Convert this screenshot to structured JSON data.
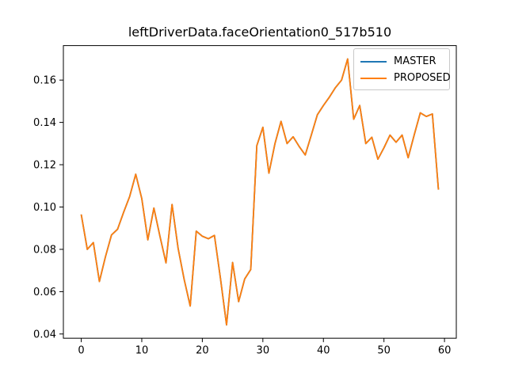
{
  "figure": {
    "background": "#ffffff"
  },
  "title": "leftDriverData.faceOrientation0_517b510",
  "legend": {
    "position": "upper right",
    "items": [
      {
        "label": "MASTER",
        "color": "#1f77b4"
      },
      {
        "label": "PROPOSED",
        "color": "#ff7f0e"
      }
    ]
  },
  "colors": {
    "spine": "#000000",
    "tick": "#000000",
    "tick_label": "#000000",
    "master": "#1f77b4",
    "proposed": "#ff7f0e"
  },
  "chart_data": {
    "type": "line",
    "title": "leftDriverData.faceOrientation0_517b510",
    "xlabel": "",
    "ylabel": "",
    "grid": false,
    "legend_position": "upper right",
    "xlim": [
      -2.95,
      61.95
    ],
    "ylim": [
      0.038,
      0.1763
    ],
    "xticks": [
      0,
      10,
      20,
      30,
      40,
      50,
      60
    ],
    "xtick_labels": [
      "0",
      "10",
      "20",
      "30",
      "40",
      "50",
      "60"
    ],
    "yticks": [
      0.04,
      0.06,
      0.08,
      0.1,
      0.12,
      0.14,
      0.16
    ],
    "ytick_labels": [
      "0.04",
      "0.06",
      "0.08",
      "0.10",
      "0.12",
      "0.14",
      "0.16"
    ],
    "x": [
      0,
      1,
      2,
      3,
      4,
      5,
      6,
      7,
      8,
      9,
      10,
      11,
      12,
      13,
      14,
      15,
      16,
      17,
      18,
      19,
      20,
      21,
      22,
      23,
      24,
      25,
      26,
      27,
      28,
      29,
      30,
      31,
      32,
      33,
      34,
      35,
      36,
      37,
      38,
      39,
      40,
      41,
      42,
      43,
      44,
      45,
      46,
      47,
      48,
      49,
      50,
      51,
      52,
      53,
      54,
      55,
      56,
      57,
      58,
      59
    ],
    "series": [
      {
        "name": "MASTER",
        "color": "#1f77b4",
        "values": [
          0.0965,
          0.08,
          0.0832,
          0.0648,
          0.0765,
          0.0868,
          0.0895,
          0.0975,
          0.105,
          0.1155,
          0.104,
          0.0845,
          0.0995,
          0.0862,
          0.0736,
          0.1012,
          0.0805,
          0.0658,
          0.0532,
          0.0886,
          0.0862,
          0.085,
          0.0866,
          0.0662,
          0.0443,
          0.0738,
          0.0553,
          0.066,
          0.0705,
          0.129,
          0.1377,
          0.116,
          0.13,
          0.1405,
          0.13,
          0.1332,
          0.1286,
          0.1246,
          0.134,
          0.1436,
          0.148,
          0.152,
          0.1565,
          0.16,
          0.17,
          0.1415,
          0.148,
          0.13,
          0.133,
          0.1226,
          0.128,
          0.134,
          0.1306,
          0.134,
          0.1233,
          0.1341,
          0.1445,
          0.1428,
          0.144,
          0.1082
        ]
      },
      {
        "name": "PROPOSED",
        "color": "#ff7f0e",
        "values": [
          0.0965,
          0.08,
          0.0832,
          0.0648,
          0.0765,
          0.0868,
          0.0895,
          0.0975,
          0.105,
          0.1155,
          0.104,
          0.0845,
          0.0995,
          0.0862,
          0.0736,
          0.1012,
          0.0805,
          0.0658,
          0.0532,
          0.0886,
          0.0862,
          0.085,
          0.0866,
          0.0662,
          0.0443,
          0.0738,
          0.0553,
          0.066,
          0.0705,
          0.129,
          0.1377,
          0.116,
          0.13,
          0.1405,
          0.13,
          0.1332,
          0.1286,
          0.1246,
          0.134,
          0.1436,
          0.148,
          0.152,
          0.1565,
          0.16,
          0.17,
          0.1415,
          0.148,
          0.13,
          0.133,
          0.1226,
          0.128,
          0.134,
          0.1306,
          0.134,
          0.1233,
          0.1341,
          0.1445,
          0.1428,
          0.144,
          0.1082
        ]
      }
    ],
    "note": "MASTER and PROPOSED curves overlap exactly; only the orange PROPOSED line is visible in the plot."
  }
}
